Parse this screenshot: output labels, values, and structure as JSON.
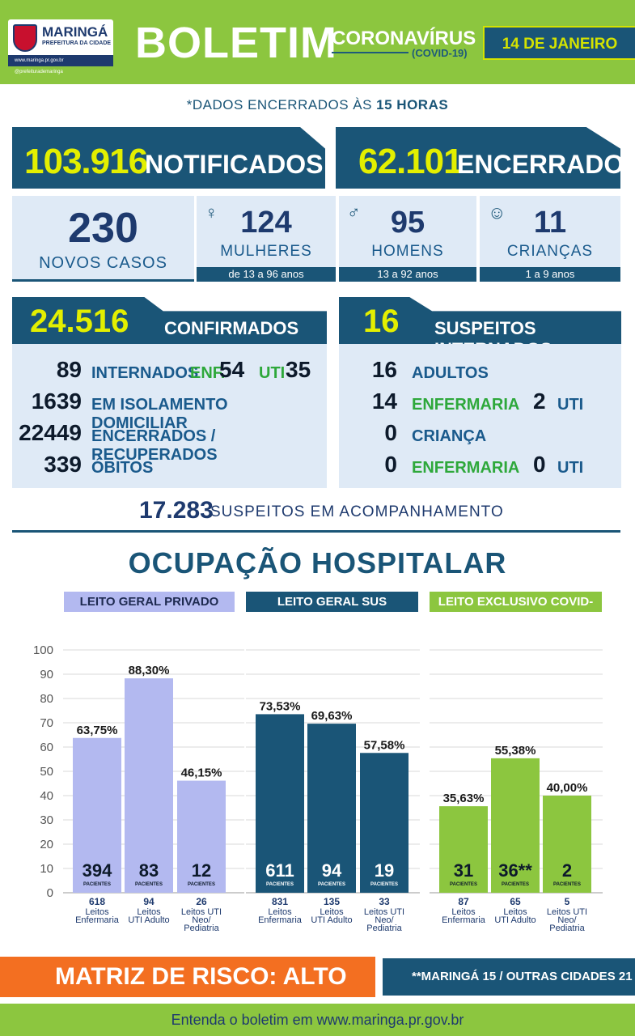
{
  "header": {
    "logo_name": "MARINGÁ",
    "logo_sub": "PREFEITURA DA CIDADE",
    "logo_strip": "www.maringa.pr.gov.br  @prefeiturademaringa",
    "title": "BOLETIM",
    "subtitle": "CORONAVÍRUS",
    "subtitle_small": "(COVID-19)",
    "date": "14 DE JANEIRO"
  },
  "closing_note": {
    "prefix": "*DADOS ENCERRADOS ÀS ",
    "hour": "15 HORAS"
  },
  "notificados": {
    "value": "103.916",
    "label": "NOTIFICADOS"
  },
  "encerrados": {
    "value": "62.101",
    "label": "ENCERRADOS"
  },
  "new_cases": {
    "value": "230",
    "label": "NOVOS CASOS"
  },
  "women": {
    "value": "124",
    "label": "MULHERES",
    "ages": "de 13 a 96 anos"
  },
  "men": {
    "value": "95",
    "label": "HOMENS",
    "ages": "13 a 92 anos"
  },
  "children": {
    "value": "11",
    "label": "CRIANÇAS",
    "ages": "1 a 9 anos"
  },
  "confirmados": {
    "value": "24.516",
    "label": "CONFIRMADOS",
    "rows": [
      {
        "n": "89",
        "t": "INTERNADOS",
        "enf_label": "ENF.",
        "enf": "54",
        "uti_label": "UTI",
        "uti": "35"
      },
      {
        "n": "1639",
        "t": "EM ISOLAMENTO DOMICILIAR"
      },
      {
        "n": "22449",
        "t": "ENCERRADOS / RECUPERADOS"
      },
      {
        "n": "339",
        "t": "ÓBITOS"
      }
    ]
  },
  "suspeitos": {
    "value": "16",
    "label": "SUSPEITOS INTERNADOS",
    "rows": [
      {
        "n": "16",
        "t": "ADULTOS"
      },
      {
        "n": "14",
        "t": "ENFERMARIA",
        "uti": "2",
        "uti_label": "UTI"
      },
      {
        "n": "0",
        "t": "CRIANÇA"
      },
      {
        "n": "0",
        "t": "ENFERMARIA",
        "uti": "0",
        "uti_label": "UTI"
      }
    ]
  },
  "monitoring": {
    "value": "17.283",
    "label": "SUSPEITOS EM ACOMPANHAMENTO"
  },
  "occupancy_title": "OCUPAÇÃO HOSPITALAR",
  "categories": {
    "private": "LEITO GERAL PRIVADO",
    "sus": "LEITO GERAL SUS",
    "covid": "LEITO EXCLUSIVO COVID-SUS"
  },
  "chart_data": {
    "type": "bar",
    "ylim": [
      0,
      100
    ],
    "yticks": [
      0,
      10,
      20,
      30,
      40,
      50,
      60,
      70,
      80,
      90,
      100
    ],
    "patients_label": "PACIENTES",
    "groups": [
      {
        "name": "LEITO GERAL PRIVADO",
        "color": "#b3b9f0",
        "bars": [
          {
            "value": 63.75,
            "label": "63,75%",
            "patients": "394",
            "beds": "618",
            "category": [
              "Leitos",
              "Enfermaria"
            ]
          },
          {
            "value": 88.3,
            "label": "88,30%",
            "patients": "83",
            "beds": "94",
            "category": [
              "Leitos",
              "UTI Adulto"
            ]
          },
          {
            "value": 46.15,
            "label": "46,15%",
            "patients": "12",
            "beds": "26",
            "category": [
              "Leitos UTI",
              "Neo/",
              "Pediatria"
            ]
          }
        ]
      },
      {
        "name": "LEITO GERAL SUS",
        "color": "#1a5577",
        "bars": [
          {
            "value": 73.53,
            "label": "73,53%",
            "patients": "611",
            "beds": "831",
            "category": [
              "Leitos",
              "Enfermaria"
            ]
          },
          {
            "value": 69.63,
            "label": "69,63%",
            "patients": "94",
            "beds": "135",
            "category": [
              "Leitos",
              "UTI Adulto"
            ]
          },
          {
            "value": 57.58,
            "label": "57,58%",
            "patients": "19",
            "beds": "33",
            "category": [
              "Leitos UTI",
              "Neo/",
              "Pediatria"
            ]
          }
        ]
      },
      {
        "name": "LEITO EXCLUSIVO COVID-SUS",
        "color": "#8cc63f",
        "bars": [
          {
            "value": 35.63,
            "label": "35,63%",
            "patients": "31",
            "beds": "87",
            "category": [
              "Leitos",
              "Enfermaria"
            ]
          },
          {
            "value": 55.38,
            "label": "55,38%",
            "patients": "36**",
            "beds": "65",
            "category": [
              "Leitos",
              "UTI Adulto"
            ]
          },
          {
            "value": 40.0,
            "label": "40,00%",
            "patients": "2",
            "beds": "5",
            "category": [
              "Leitos UTI",
              "Neo/",
              "Pediatria"
            ]
          }
        ]
      }
    ]
  },
  "risk": "MATRIZ DE RISCO: ALTO",
  "cities": "**MARINGÁ 15 / OUTRAS CIDADES 21",
  "footer": "Entenda o boletim em www.maringa.pr.gov.br"
}
